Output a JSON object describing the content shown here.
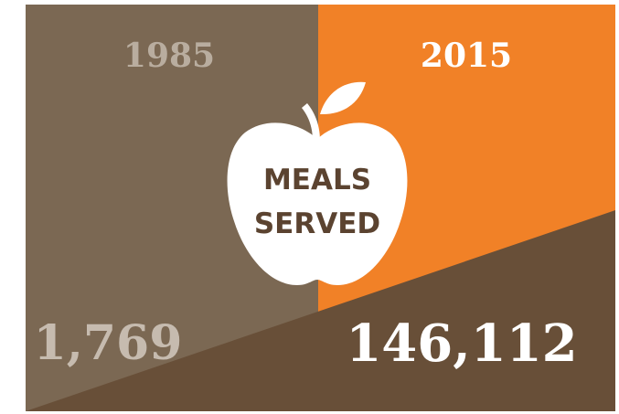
{
  "left": {
    "year": "1985",
    "value": "1,769"
  },
  "right": {
    "year": "2015",
    "value": "146,112"
  },
  "label": {
    "line1": "MEALS",
    "line2": "SERVED"
  }
}
